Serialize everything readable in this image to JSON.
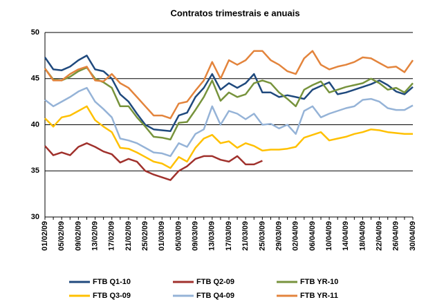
{
  "chart_data": {
    "type": "line",
    "title": "Contratos trimestrais e anuais",
    "categories": [
      "01/02/09",
      null,
      "05/02/09",
      null,
      "09/02/09",
      null,
      "13/02/09",
      null,
      "17/02/09",
      null,
      "21/02/09",
      null,
      "25/02/09",
      null,
      "01/03/09",
      null,
      "05/03/09",
      null,
      "09/03/09",
      null,
      "13/03/09",
      null,
      "17/03/09",
      null,
      "21/03/09",
      null,
      "25/03/09",
      null,
      "29/03/09",
      null,
      "02/04/09",
      null,
      "06/04/09",
      null,
      "10/04/09",
      null,
      "14/04/09",
      null,
      "18/04/09",
      null,
      "22/04/09",
      null,
      "26/04/09",
      null,
      "30/04/09"
    ],
    "series": [
      {
        "name": "FTB Q1-10",
        "color": "#1f497d",
        "values": [
          47.3,
          46.0,
          45.9,
          46.3,
          47.0,
          47.5,
          46.0,
          45.8,
          45.0,
          43.3,
          42.5,
          41.2,
          40.0,
          39.5,
          39.4,
          39.3,
          41.0,
          41.3,
          43.0,
          44.0,
          45.5,
          43.8,
          44.5,
          44.0,
          44.5,
          45.5,
          43.5,
          43.5,
          43.0,
          43.2,
          43.0,
          42.8,
          43.8,
          44.2,
          44.6,
          43.3,
          43.5,
          43.8,
          44.1,
          44.4,
          44.8,
          44.3,
          43.6,
          43.3,
          44.1
        ]
      },
      {
        "name": "FTB Q2-09",
        "color": "#a0312c",
        "values": [
          37.7,
          36.7,
          37.0,
          36.7,
          37.6,
          38.0,
          37.6,
          37.1,
          36.8,
          35.9,
          36.3,
          36.0,
          35.0,
          34.6,
          34.3,
          34.0,
          35.0,
          35.5,
          36.3,
          36.6,
          36.6,
          36.2,
          36.0,
          36.6,
          35.7,
          35.7,
          36.1,
          null,
          null,
          null,
          null,
          null,
          null,
          null,
          null,
          null,
          null,
          null,
          null,
          null,
          null,
          null,
          null,
          null,
          null
        ]
      },
      {
        "name": "FTB YR-10",
        "color": "#77933c",
        "values": [
          46.1,
          44.9,
          44.8,
          45.2,
          45.8,
          46.2,
          45.0,
          44.6,
          44.0,
          42.0,
          42.0,
          40.8,
          39.8,
          38.7,
          38.6,
          38.4,
          40.2,
          40.3,
          41.6,
          43.0,
          44.8,
          42.6,
          43.5,
          43.0,
          43.3,
          44.5,
          44.8,
          44.5,
          43.5,
          42.8,
          42.0,
          43.8,
          44.3,
          44.7,
          43.5,
          43.8,
          44.1,
          44.3,
          44.5,
          45.0,
          44.5,
          43.8,
          44.0,
          43.5,
          44.5
        ]
      },
      {
        "name": "FTB Q3-09",
        "color": "#ffc000",
        "values": [
          40.7,
          39.8,
          40.8,
          41.0,
          41.5,
          42.0,
          40.5,
          39.8,
          39.2,
          37.5,
          37.4,
          37.0,
          36.5,
          36.0,
          35.8,
          35.3,
          36.5,
          36.0,
          37.5,
          38.5,
          38.9,
          38.0,
          38.2,
          37.5,
          38.0,
          37.7,
          37.2,
          37.3,
          37.3,
          37.4,
          37.6,
          38.6,
          38.9,
          39.2,
          38.3,
          38.5,
          38.7,
          39.0,
          39.2,
          39.5,
          39.4,
          39.2,
          39.1,
          39.0,
          39.0
        ]
      },
      {
        "name": "FTB Q4-09",
        "color": "#95b3d7",
        "values": [
          42.7,
          42.0,
          42.5,
          43.0,
          43.6,
          44.0,
          42.5,
          41.7,
          40.8,
          38.5,
          38.3,
          38.0,
          37.5,
          37.0,
          36.9,
          36.6,
          38.0,
          37.6,
          39.0,
          39.5,
          42.0,
          40.0,
          41.5,
          41.2,
          40.6,
          41.2,
          40.0,
          40.1,
          39.6,
          40.0,
          39.0,
          41.5,
          42.0,
          40.8,
          41.2,
          41.5,
          41.8,
          42.0,
          42.7,
          42.8,
          42.5,
          41.8,
          41.6,
          41.6,
          42.1
        ]
      },
      {
        "name": "FTB YR-11",
        "color": "#e3843c",
        "values": [
          46.1,
          44.8,
          44.8,
          45.5,
          46.0,
          46.3,
          44.8,
          44.7,
          45.5,
          44.5,
          44.0,
          43.0,
          42.0,
          41.0,
          41.0,
          40.7,
          42.3,
          42.5,
          43.7,
          44.8,
          46.8,
          45.0,
          47.0,
          46.5,
          47.0,
          48.0,
          48.0,
          47.0,
          46.5,
          45.8,
          45.5,
          47.2,
          48.0,
          46.5,
          46.0,
          46.3,
          46.5,
          46.8,
          47.3,
          47.2,
          46.7,
          46.2,
          46.3,
          45.7,
          47.0
        ]
      }
    ],
    "ylim": [
      30,
      50
    ],
    "yticks": [
      30,
      35,
      40,
      45,
      50
    ],
    "grid": true,
    "legend": "bottom"
  }
}
